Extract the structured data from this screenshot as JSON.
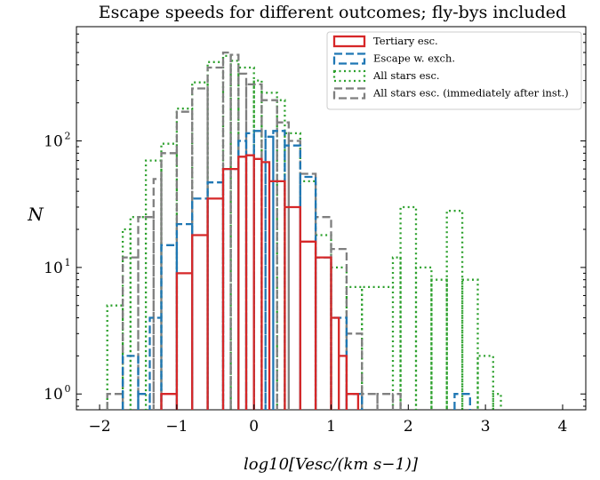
{
  "chart_data": {
    "type": "step",
    "title": "Escape speeds for different outcomes; fly-bys included",
    "xlabel": "log10[Vesc/(km s−1)]",
    "ylabel": "N",
    "xlim": [
      -2.3,
      4.3
    ],
    "ylim": [
      0.75,
      800
    ],
    "yscale": "log",
    "x_ticks": [
      -2,
      -1,
      0,
      1,
      2,
      3,
      4
    ],
    "x_tick_labels": [
      "−2",
      "−1",
      "0",
      "1",
      "2",
      "3",
      "4"
    ],
    "y_ticks": [
      1,
      10,
      100
    ],
    "y_tick_labels": [
      "10",
      "10",
      "10"
    ],
    "y_tick_exponents": [
      "0",
      "1",
      "2"
    ],
    "legend_position": "top-right",
    "series": [
      {
        "name": "Tertiary esc.",
        "color": "#d62728",
        "style": "solid",
        "bins": [
          [
            -1.2,
            -1.0,
            1
          ],
          [
            -1.0,
            -0.8,
            9
          ],
          [
            -0.8,
            -0.6,
            18
          ],
          [
            -0.6,
            -0.4,
            35
          ],
          [
            -0.4,
            -0.2,
            60
          ],
          [
            -0.2,
            -0.1,
            75
          ],
          [
            -0.1,
            0.0,
            77
          ],
          [
            0.0,
            0.1,
            72
          ],
          [
            0.1,
            0.2,
            68
          ],
          [
            0.2,
            0.4,
            48
          ],
          [
            0.4,
            0.6,
            30
          ],
          [
            0.6,
            0.8,
            16
          ],
          [
            0.8,
            1.0,
            12
          ],
          [
            1.0,
            1.1,
            4
          ],
          [
            1.1,
            1.2,
            2
          ],
          [
            1.2,
            1.35,
            1
          ]
        ]
      },
      {
        "name": "Escape w. exch.",
        "color": "#1f77b4",
        "style": "dashed",
        "bins": [
          [
            -1.7,
            -1.5,
            2
          ],
          [
            -1.5,
            -1.35,
            1
          ],
          [
            -1.35,
            -1.2,
            4
          ],
          [
            -1.2,
            -1.0,
            15
          ],
          [
            -1.0,
            -0.8,
            22
          ],
          [
            -0.8,
            -0.6,
            35
          ],
          [
            -0.6,
            -0.4,
            47
          ],
          [
            -0.4,
            -0.2,
            60
          ],
          [
            -0.2,
            -0.1,
            100
          ],
          [
            -0.1,
            0.0,
            115
          ],
          [
            0.0,
            0.15,
            120
          ],
          [
            0.15,
            0.25,
            108
          ],
          [
            0.25,
            0.4,
            120
          ],
          [
            0.4,
            0.6,
            92
          ],
          [
            0.6,
            0.8,
            52
          ],
          [
            0.8,
            1.0,
            12
          ],
          [
            1.0,
            1.2,
            4
          ],
          [
            1.2,
            1.4,
            1
          ],
          [
            2.6,
            2.8,
            1
          ]
        ]
      },
      {
        "name": "All stars esc.",
        "color": "#2ca02c",
        "style": "dotted",
        "bins": [
          [
            -1.9,
            -1.7,
            5
          ],
          [
            -1.7,
            -1.6,
            20
          ],
          [
            -1.6,
            -1.4,
            25
          ],
          [
            -1.4,
            -1.2,
            70
          ],
          [
            -1.2,
            -1.0,
            95
          ],
          [
            -1.0,
            -0.8,
            180
          ],
          [
            -0.8,
            -0.6,
            290
          ],
          [
            -0.6,
            -0.4,
            420
          ],
          [
            -0.4,
            -0.3,
            470
          ],
          [
            -0.3,
            -0.2,
            430
          ],
          [
            -0.2,
            0.0,
            380
          ],
          [
            0.0,
            0.1,
            300
          ],
          [
            0.1,
            0.3,
            240
          ],
          [
            0.3,
            0.4,
            210
          ],
          [
            0.4,
            0.6,
            115
          ],
          [
            0.6,
            0.8,
            48
          ],
          [
            0.8,
            1.0,
            18
          ],
          [
            1.0,
            1.2,
            10
          ],
          [
            1.2,
            1.4,
            7
          ],
          [
            1.4,
            1.8,
            7
          ],
          [
            1.8,
            1.9,
            12
          ],
          [
            1.9,
            2.1,
            30
          ],
          [
            2.1,
            2.3,
            10
          ],
          [
            2.3,
            2.5,
            8
          ],
          [
            2.5,
            2.7,
            28
          ],
          [
            2.7,
            2.9,
            8
          ],
          [
            2.9,
            3.1,
            2
          ],
          [
            3.1,
            3.2,
            1
          ]
        ]
      },
      {
        "name": "All stars esc. (immediately after inst.)",
        "color": "#7f7f7f",
        "style": "dashed",
        "bins": [
          [
            -1.9,
            -1.7,
            1
          ],
          [
            -1.7,
            -1.5,
            12
          ],
          [
            -1.5,
            -1.3,
            25
          ],
          [
            -1.3,
            -1.2,
            50
          ],
          [
            -1.2,
            -1.0,
            80
          ],
          [
            -1.0,
            -0.8,
            170
          ],
          [
            -0.8,
            -0.6,
            260
          ],
          [
            -0.6,
            -0.4,
            380
          ],
          [
            -0.4,
            -0.3,
            500
          ],
          [
            -0.3,
            -0.2,
            480
          ],
          [
            -0.2,
            -0.1,
            340
          ],
          [
            -0.1,
            0.1,
            280
          ],
          [
            0.1,
            0.3,
            210
          ],
          [
            0.3,
            0.45,
            140
          ],
          [
            0.45,
            0.6,
            100
          ],
          [
            0.6,
            0.8,
            55
          ],
          [
            0.8,
            1.0,
            25
          ],
          [
            1.0,
            1.2,
            14
          ],
          [
            1.2,
            1.4,
            3
          ],
          [
            1.4,
            1.6,
            1
          ],
          [
            1.6,
            1.8,
            1
          ],
          [
            1.8,
            1.9,
            1
          ]
        ]
      }
    ]
  }
}
